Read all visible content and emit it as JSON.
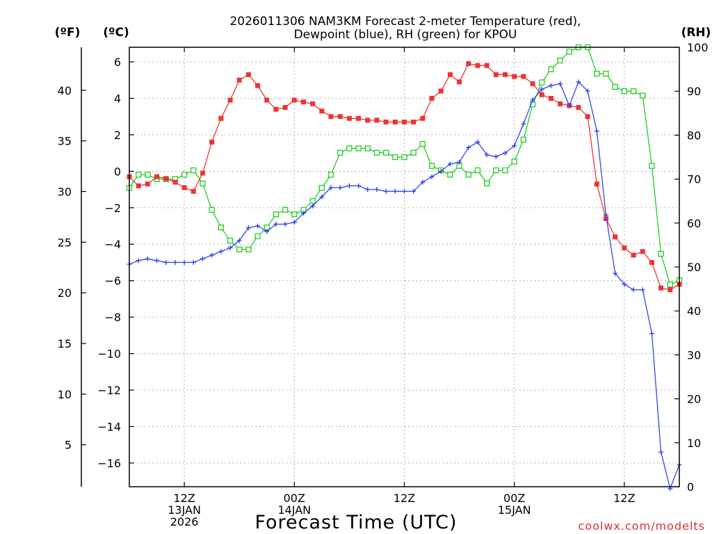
{
  "chart_data": {
    "type": "line",
    "title_lines": [
      "2026011306 NAM3KM Forecast 2-meter Temperature (red),",
      "Dewpoint (blue), RH (green) for KPOU"
    ],
    "xlabel": "Forecast Time (UTC)",
    "credit": "coolwx.com/modelts",
    "units": {
      "fahrenheit": "(ºF)",
      "celsius": "(ºC)",
      "rh": "(RH)"
    },
    "x_axis": {
      "unit": "forecast hour",
      "range": [
        0,
        60
      ],
      "ticks": [
        {
          "x": 6,
          "lines": [
            "12Z",
            "13JAN",
            "2026"
          ]
        },
        {
          "x": 18,
          "lines": [
            "00Z",
            "14JAN"
          ]
        },
        {
          "x": 30,
          "lines": [
            "12Z"
          ]
        },
        {
          "x": 42,
          "lines": [
            "00Z",
            "15JAN"
          ]
        },
        {
          "x": 54,
          "lines": [
            "12Z"
          ]
        }
      ]
    },
    "y_left_c": {
      "range": [
        -17.3,
        6.8
      ],
      "ticks": [
        6,
        4,
        2,
        0,
        -2,
        -4,
        -6,
        -8,
        -10,
        -12,
        -14,
        -16
      ],
      "tick_labels": [
        "6",
        "4",
        "2",
        "0",
        "−2",
        "−4",
        "−6",
        "−8",
        "−10",
        "−12",
        "−14",
        "−16"
      ]
    },
    "y_far_left_f": {
      "ticks": [
        40,
        35,
        30,
        25,
        20,
        15,
        10,
        5
      ],
      "tick_labels": [
        "40",
        "35",
        "30",
        "25",
        "20",
        "15",
        "10",
        "5"
      ]
    },
    "y_right_rh": {
      "range": [
        0,
        100
      ],
      "ticks": [
        100,
        90,
        80,
        70,
        60,
        50,
        40,
        30,
        20,
        10,
        0
      ],
      "tick_labels": [
        "100",
        "90",
        "80",
        "70",
        "60",
        "50",
        "40",
        "30",
        "20",
        "10",
        "0"
      ]
    },
    "series": [
      {
        "name": "2-meter Temperature",
        "unit": "°C",
        "color": "#ee3333",
        "marker": "filled-square",
        "x": [
          0,
          1,
          2,
          3,
          4,
          5,
          6,
          7,
          8,
          9,
          10,
          11,
          12,
          13,
          14,
          15,
          16,
          17,
          18,
          19,
          20,
          21,
          22,
          23,
          24,
          25,
          26,
          27,
          28,
          29,
          30,
          31,
          32,
          33,
          34,
          35,
          36,
          37,
          38,
          39,
          40,
          41,
          42,
          43,
          44,
          45,
          46,
          47,
          48,
          49,
          50,
          51,
          52,
          53,
          54,
          55,
          56,
          57,
          58,
          59,
          60
        ],
        "values": [
          -0.3,
          -0.8,
          -0.7,
          -0.3,
          -0.4,
          -0.6,
          -0.9,
          -1.1,
          -0.1,
          1.6,
          2.9,
          3.9,
          5.0,
          5.3,
          4.7,
          3.9,
          3.4,
          3.5,
          3.9,
          3.8,
          3.7,
          3.3,
          3.0,
          3.0,
          2.9,
          2.9,
          2.8,
          2.8,
          2.7,
          2.7,
          2.7,
          2.7,
          2.9,
          4.0,
          4.4,
          5.3,
          4.9,
          5.9,
          5.8,
          5.8,
          5.3,
          5.3,
          5.2,
          5.2,
          4.8,
          4.2,
          4.0,
          3.7,
          3.6,
          3.5,
          3.0,
          -0.7,
          -2.6,
          -3.6,
          -4.2,
          -4.6,
          -4.4,
          -5.0,
          -6.4,
          -6.5,
          -6.2
        ]
      },
      {
        "name": "Dewpoint",
        "unit": "°C",
        "color": "#3344ee",
        "marker": "plus",
        "x": [
          0,
          1,
          2,
          3,
          4,
          5,
          6,
          7,
          8,
          9,
          10,
          11,
          12,
          13,
          14,
          15,
          16,
          17,
          18,
          19,
          20,
          21,
          22,
          23,
          24,
          25,
          26,
          27,
          28,
          29,
          30,
          31,
          32,
          33,
          34,
          35,
          36,
          37,
          38,
          39,
          40,
          41,
          42,
          43,
          44,
          45,
          46,
          47,
          48,
          49,
          50,
          51,
          52,
          53,
          54,
          55,
          56,
          57,
          58,
          59,
          60
        ],
        "values": [
          -5.1,
          -4.9,
          -4.8,
          -4.9,
          -5.0,
          -5.0,
          -5.0,
          -5.0,
          -4.8,
          -4.6,
          -4.4,
          -4.2,
          -3.8,
          -3.1,
          -3.0,
          -3.3,
          -2.9,
          -2.9,
          -2.8,
          -2.3,
          -1.9,
          -1.4,
          -0.9,
          -0.9,
          -0.8,
          -0.8,
          -1.0,
          -1.0,
          -1.1,
          -1.1,
          -1.1,
          -1.1,
          -0.6,
          -0.3,
          0.0,
          0.4,
          0.5,
          1.3,
          1.6,
          0.9,
          0.8,
          1.0,
          1.4,
          2.6,
          3.9,
          4.5,
          4.7,
          4.8,
          3.6,
          4.9,
          4.4,
          2.2,
          -2.4,
          -5.6,
          -6.2,
          -6.5,
          -6.5,
          -8.9,
          -15.4,
          -17.4,
          -16.1
        ]
      },
      {
        "name": "Relative Humidity",
        "unit": "%",
        "color": "#22cc22",
        "marker": "open-square",
        "x": [
          0,
          1,
          2,
          3,
          4,
          5,
          6,
          7,
          8,
          9,
          10,
          11,
          12,
          13,
          14,
          15,
          16,
          17,
          18,
          19,
          20,
          21,
          22,
          23,
          24,
          25,
          26,
          27,
          28,
          29,
          30,
          31,
          32,
          33,
          34,
          35,
          36,
          37,
          38,
          39,
          40,
          41,
          42,
          43,
          44,
          45,
          46,
          47,
          48,
          49,
          50,
          51,
          52,
          53,
          54,
          55,
          56,
          57,
          58,
          59,
          60
        ],
        "values": [
          68,
          71,
          71,
          70,
          70,
          70,
          71,
          72,
          69,
          63,
          59,
          56,
          54,
          54,
          57,
          59,
          62,
          63,
          62,
          63,
          65,
          68,
          71,
          76,
          77,
          77,
          77,
          76,
          76,
          75,
          75,
          76,
          78,
          73,
          72,
          71,
          73,
          71,
          72,
          69,
          72,
          72,
          74,
          79,
          87,
          92,
          95,
          97,
          99,
          100,
          100,
          94,
          94,
          91,
          90,
          90,
          89,
          73,
          53,
          46,
          47
        ]
      }
    ]
  }
}
